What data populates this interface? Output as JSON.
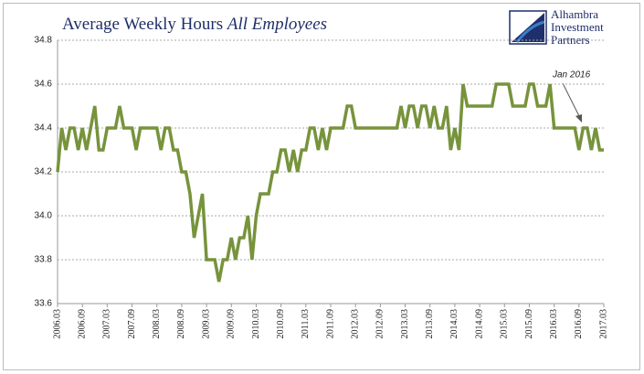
{
  "chart_data": {
    "type": "line",
    "title": "Average Weekly Hours",
    "title_emphasis": "All Employees",
    "logo_lines": [
      "Alhambra",
      "Investment",
      "Partners"
    ],
    "annotation": "Jan 2016",
    "color": "#77933c",
    "grid": true,
    "ylim": [
      33.6,
      34.8
    ],
    "yticks": [
      33.6,
      33.8,
      {
        "value": 34,
        "label": "34.0"
      },
      34.2,
      34.4,
      34.6,
      34.8
    ],
    "categories": [
      "2006.03",
      null,
      null,
      null,
      null,
      null,
      "2006.09",
      null,
      null,
      null,
      null,
      null,
      "2007.03",
      null,
      null,
      null,
      null,
      null,
      "2007.09",
      null,
      null,
      null,
      null,
      null,
      "2008.03",
      null,
      null,
      null,
      null,
      null,
      "2008.09",
      null,
      null,
      null,
      null,
      null,
      "2009.03",
      null,
      null,
      null,
      null,
      null,
      "2009.09",
      null,
      null,
      null,
      null,
      null,
      "2010.03",
      null,
      null,
      null,
      null,
      null,
      "2010.09",
      null,
      null,
      null,
      null,
      null,
      "2011.03",
      null,
      null,
      null,
      null,
      null,
      "2011.09",
      null,
      null,
      null,
      null,
      null,
      "2012.03",
      null,
      null,
      null,
      null,
      null,
      "2012.09",
      null,
      null,
      null,
      null,
      null,
      "2013.03",
      null,
      null,
      null,
      null,
      null,
      "2013.09",
      null,
      null,
      null,
      null,
      null,
      "2014.03",
      null,
      null,
      null,
      null,
      null,
      "2014.09",
      null,
      null,
      null,
      null,
      null,
      "2015.03",
      null,
      null,
      null,
      null,
      null,
      "2015.09",
      null,
      null,
      null,
      null,
      null,
      "2016.03",
      null,
      null,
      null,
      null,
      null,
      "2016.09",
      null,
      null,
      null,
      null,
      null,
      "2017.03"
    ],
    "values": [
      34.2,
      34.4,
      34.3,
      34.4,
      34.4,
      34.3,
      34.4,
      34.3,
      34.4,
      34.5,
      34.3,
      34.3,
      34.4,
      34.4,
      34.4,
      34.5,
      34.4,
      34.4,
      34.4,
      34.3,
      34.4,
      34.4,
      34.4,
      34.4,
      34.4,
      34.3,
      34.4,
      34.4,
      34.3,
      34.3,
      34.2,
      34.2,
      34.1,
      33.9,
      34.0,
      34.1,
      33.8,
      33.8,
      33.8,
      33.7,
      33.8,
      33.8,
      33.9,
      33.8,
      33.9,
      33.9,
      34.0,
      33.8,
      34.0,
      34.1,
      34.1,
      34.1,
      34.2,
      34.2,
      34.3,
      34.3,
      34.2,
      34.3,
      34.2,
      34.3,
      34.3,
      34.4,
      34.4,
      34.3,
      34.4,
      34.3,
      34.4,
      34.4,
      34.4,
      34.4,
      34.5,
      34.5,
      34.4,
      34.4,
      34.4,
      34.4,
      34.4,
      34.4,
      34.4,
      34.4,
      34.4,
      34.4,
      34.4,
      34.5,
      34.4,
      34.5,
      34.5,
      34.4,
      34.5,
      34.5,
      34.4,
      34.5,
      34.4,
      34.4,
      34.5,
      34.3,
      34.4,
      34.3,
      34.6,
      34.5,
      34.5,
      34.5,
      34.5,
      34.5,
      34.5,
      34.5,
      34.6,
      34.6,
      34.6,
      34.6,
      34.5,
      34.5,
      34.5,
      34.5,
      34.6,
      34.6,
      34.5,
      34.5,
      34.5,
      34.6,
      34.4,
      34.4,
      34.4,
      34.4,
      34.4,
      34.4,
      34.3,
      34.4,
      34.4,
      34.3,
      34.4,
      34.3,
      34.3
    ]
  }
}
